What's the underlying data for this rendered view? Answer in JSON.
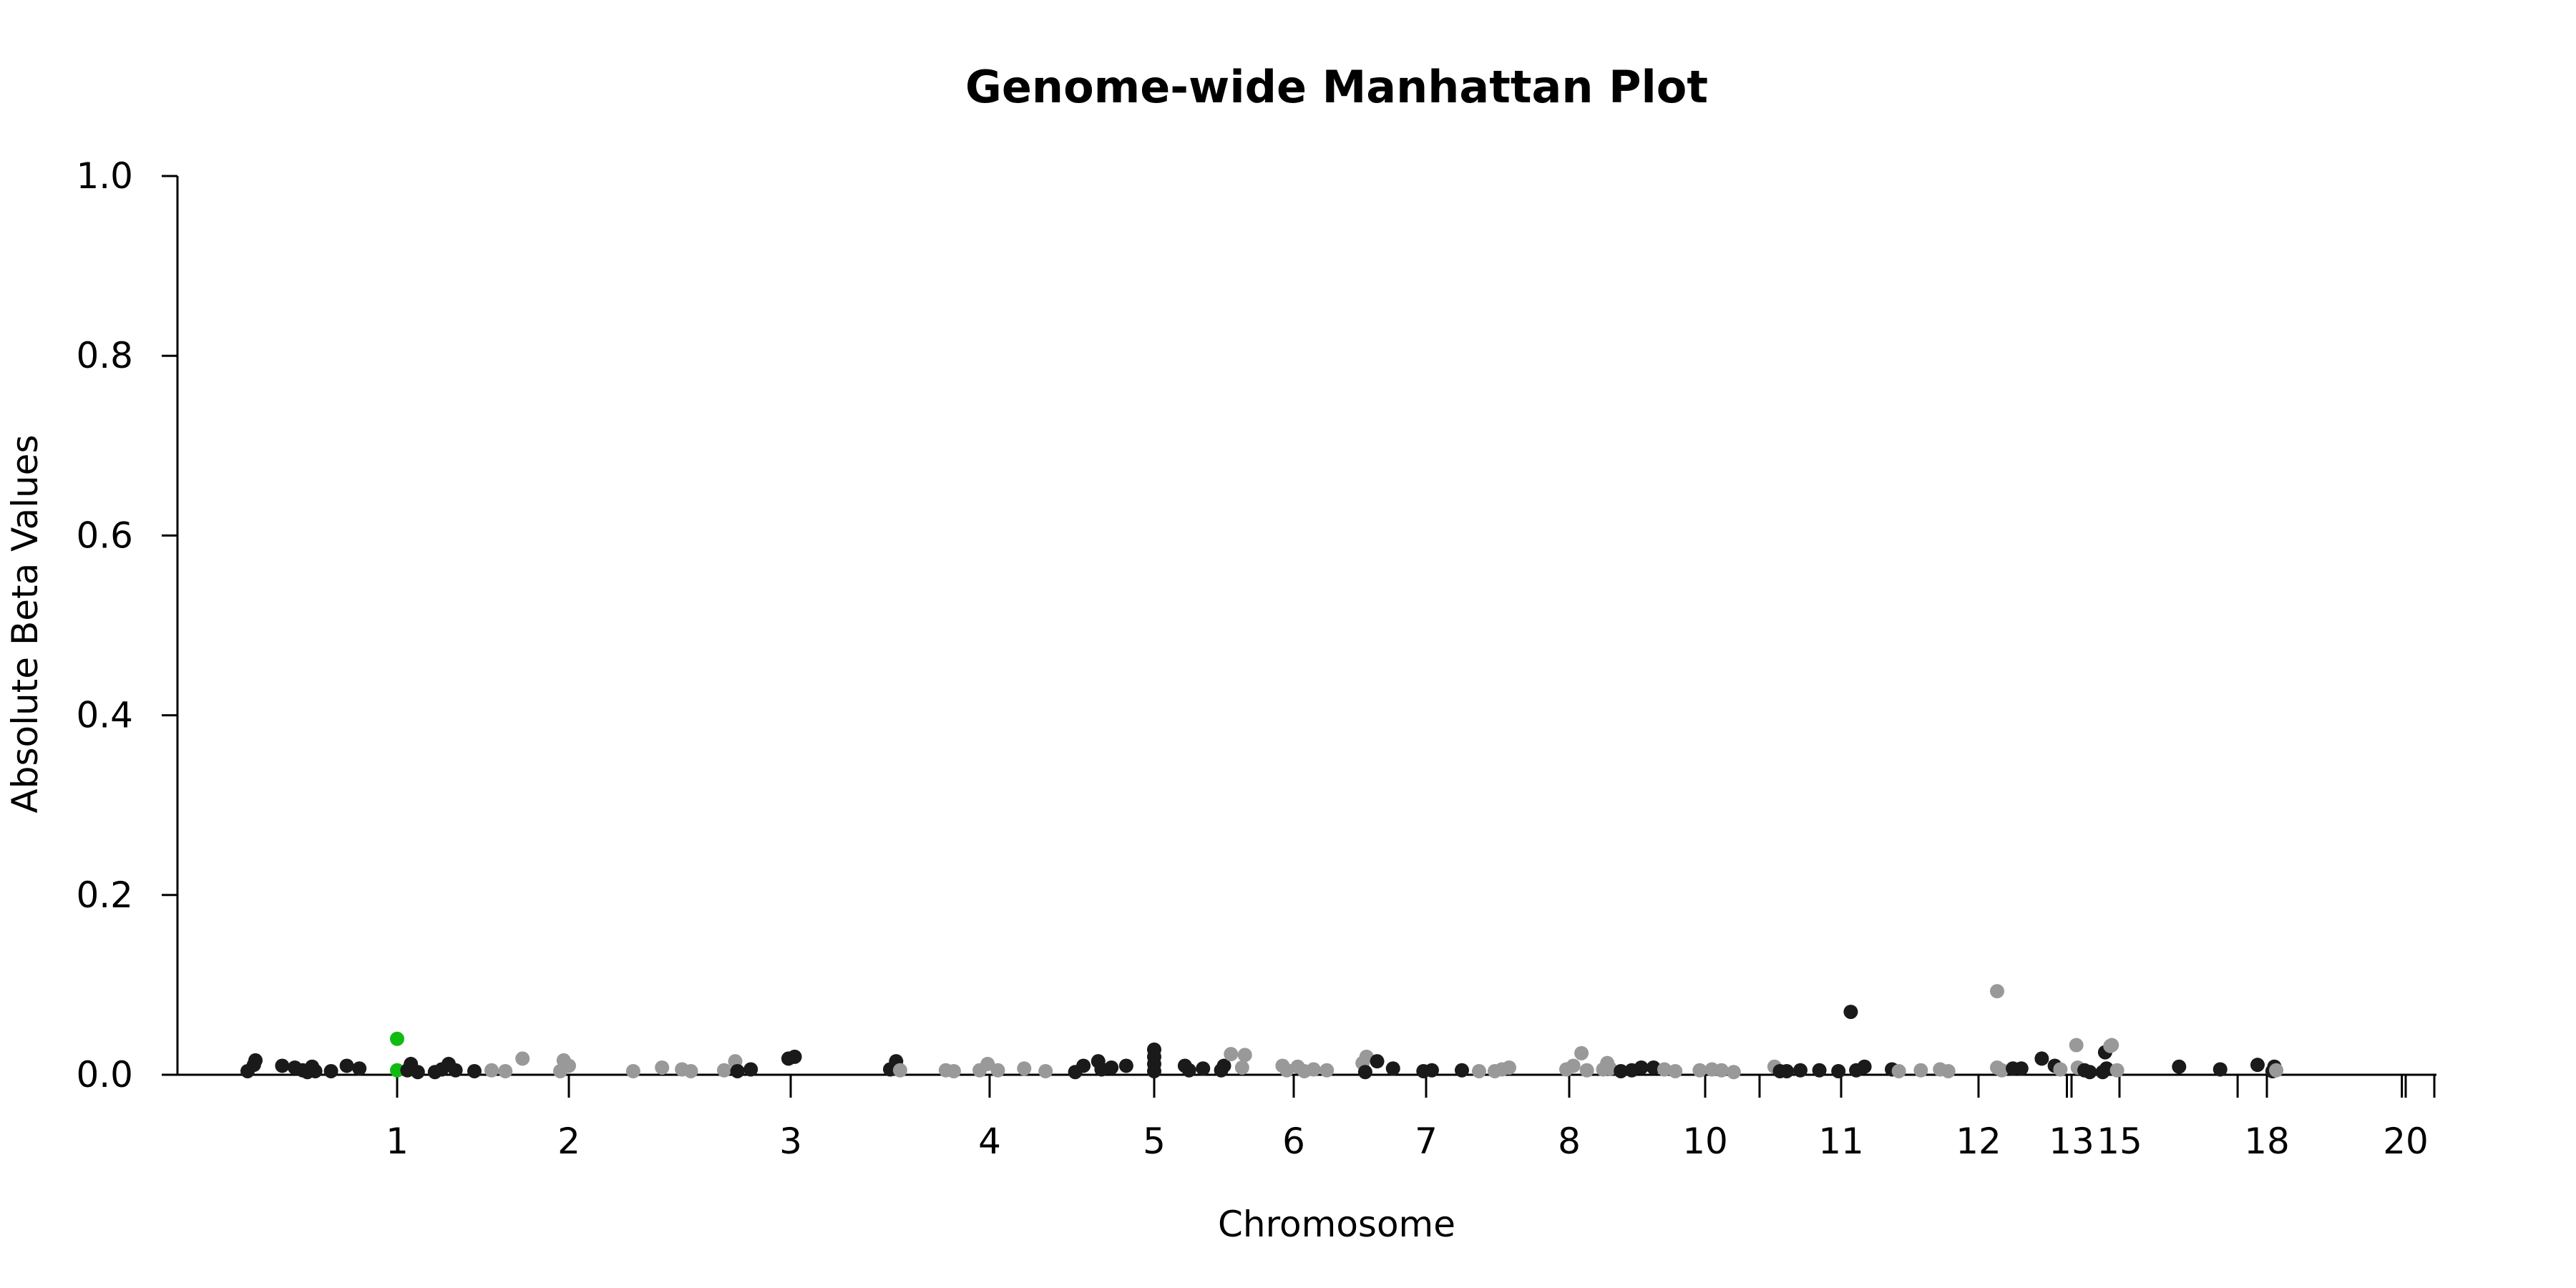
{
  "chart_data": {
    "type": "scatter",
    "title": "Genome-wide Manhattan Plot",
    "xlabel": "Chromosome",
    "ylabel": "Absolute Beta Values",
    "ylim": [
      0,
      1.0
    ],
    "y_ticks": [
      "0.0",
      "0.2",
      "0.4",
      "0.6",
      "0.8",
      "1.0"
    ],
    "x_labeled_ticks": [
      "1",
      "2",
      "3",
      "4",
      "5",
      "6",
      "7",
      "8",
      "10",
      "11",
      "12",
      "13",
      "15",
      "18",
      "20"
    ],
    "grid": false,
    "legend": "none",
    "colors": {
      "black": "#1a1a1a",
      "gray": "#999999",
      "highlight": "#11bb11"
    },
    "points": [
      {
        "x": 0.05,
        "y": 0.004,
        "c": "black"
      },
      {
        "x": 0.09,
        "y": 0.011,
        "c": "black"
      },
      {
        "x": 0.1,
        "y": 0.016,
        "c": "black"
      },
      {
        "x": 0.27,
        "y": 0.01,
        "c": "black"
      },
      {
        "x": 0.35,
        "y": 0.008,
        "c": "black"
      },
      {
        "x": 0.4,
        "y": 0.005,
        "c": "black"
      },
      {
        "x": 0.43,
        "y": 0.003,
        "c": "black"
      },
      {
        "x": 0.46,
        "y": 0.009,
        "c": "black"
      },
      {
        "x": 0.48,
        "y": 0.004,
        "c": "black"
      },
      {
        "x": 0.58,
        "y": 0.004,
        "c": "black"
      },
      {
        "x": 0.68,
        "y": 0.01,
        "c": "black"
      },
      {
        "x": 0.76,
        "y": 0.007,
        "c": "black"
      },
      {
        "x": 1.0,
        "y": 0.04,
        "c": "highlight"
      },
      {
        "x": 1.0,
        "y": 0.005,
        "c": "highlight"
      },
      {
        "x": 1.06,
        "y": 0.005,
        "c": "black"
      },
      {
        "x": 1.08,
        "y": 0.012,
        "c": "black"
      },
      {
        "x": 1.12,
        "y": 0.003,
        "c": "black"
      },
      {
        "x": 1.22,
        "y": 0.003,
        "c": "black"
      },
      {
        "x": 1.26,
        "y": 0.006,
        "c": "black"
      },
      {
        "x": 1.3,
        "y": 0.012,
        "c": "black"
      },
      {
        "x": 1.34,
        "y": 0.005,
        "c": "black"
      },
      {
        "x": 1.45,
        "y": 0.004,
        "c": "black"
      },
      {
        "x": 1.55,
        "y": 0.005,
        "c": "gray"
      },
      {
        "x": 1.63,
        "y": 0.004,
        "c": "gray"
      },
      {
        "x": 1.73,
        "y": 0.018,
        "c": "gray"
      },
      {
        "x": 1.95,
        "y": 0.004,
        "c": "gray"
      },
      {
        "x": 1.97,
        "y": 0.016,
        "c": "gray"
      },
      {
        "x": 2.0,
        "y": 0.01,
        "c": "gray"
      },
      {
        "x": 2.29,
        "y": 0.004,
        "c": "gray"
      },
      {
        "x": 2.42,
        "y": 0.008,
        "c": "gray"
      },
      {
        "x": 2.51,
        "y": 0.006,
        "c": "gray"
      },
      {
        "x": 2.55,
        "y": 0.004,
        "c": "gray"
      },
      {
        "x": 2.7,
        "y": 0.005,
        "c": "gray"
      },
      {
        "x": 2.75,
        "y": 0.015,
        "c": "gray"
      },
      {
        "x": 2.76,
        "y": 0.004,
        "c": "black"
      },
      {
        "x": 2.82,
        "y": 0.006,
        "c": "black"
      },
      {
        "x": 2.99,
        "y": 0.018,
        "c": "black"
      },
      {
        "x": 3.02,
        "y": 0.02,
        "c": "black"
      },
      {
        "x": 3.5,
        "y": 0.006,
        "c": "black"
      },
      {
        "x": 3.53,
        "y": 0.015,
        "c": "black"
      },
      {
        "x": 3.55,
        "y": 0.005,
        "c": "gray"
      },
      {
        "x": 3.78,
        "y": 0.005,
        "c": "gray"
      },
      {
        "x": 3.82,
        "y": 0.004,
        "c": "gray"
      },
      {
        "x": 3.95,
        "y": 0.005,
        "c": "gray"
      },
      {
        "x": 3.99,
        "y": 0.012,
        "c": "gray"
      },
      {
        "x": 4.05,
        "y": 0.005,
        "c": "gray"
      },
      {
        "x": 4.21,
        "y": 0.007,
        "c": "gray"
      },
      {
        "x": 4.34,
        "y": 0.004,
        "c": "gray"
      },
      {
        "x": 4.52,
        "y": 0.003,
        "c": "black"
      },
      {
        "x": 4.57,
        "y": 0.01,
        "c": "black"
      },
      {
        "x": 4.66,
        "y": 0.015,
        "c": "black"
      },
      {
        "x": 4.68,
        "y": 0.006,
        "c": "black"
      },
      {
        "x": 4.74,
        "y": 0.008,
        "c": "black"
      },
      {
        "x": 4.83,
        "y": 0.01,
        "c": "black"
      },
      {
        "x": 5.0,
        "y": 0.004,
        "c": "black"
      },
      {
        "x": 5.0,
        "y": 0.012,
        "c": "black"
      },
      {
        "x": 5.0,
        "y": 0.02,
        "c": "black"
      },
      {
        "x": 5.0,
        "y": 0.028,
        "c": "black"
      },
      {
        "x": 5.22,
        "y": 0.01,
        "c": "black"
      },
      {
        "x": 5.25,
        "y": 0.005,
        "c": "black"
      },
      {
        "x": 5.35,
        "y": 0.007,
        "c": "black"
      },
      {
        "x": 5.48,
        "y": 0.005,
        "c": "black"
      },
      {
        "x": 5.5,
        "y": 0.01,
        "c": "black"
      },
      {
        "x": 5.55,
        "y": 0.023,
        "c": "gray"
      },
      {
        "x": 5.63,
        "y": 0.008,
        "c": "gray"
      },
      {
        "x": 5.65,
        "y": 0.022,
        "c": "gray"
      },
      {
        "x": 5.92,
        "y": 0.01,
        "c": "gray"
      },
      {
        "x": 5.95,
        "y": 0.005,
        "c": "gray"
      },
      {
        "x": 6.03,
        "y": 0.009,
        "c": "gray"
      },
      {
        "x": 6.08,
        "y": 0.004,
        "c": "gray"
      },
      {
        "x": 6.15,
        "y": 0.006,
        "c": "gray"
      },
      {
        "x": 6.25,
        "y": 0.005,
        "c": "gray"
      },
      {
        "x": 6.52,
        "y": 0.013,
        "c": "gray"
      },
      {
        "x": 6.55,
        "y": 0.02,
        "c": "gray"
      },
      {
        "x": 6.54,
        "y": 0.003,
        "c": "black"
      },
      {
        "x": 6.63,
        "y": 0.015,
        "c": "black"
      },
      {
        "x": 6.75,
        "y": 0.007,
        "c": "black"
      },
      {
        "x": 6.98,
        "y": 0.004,
        "c": "black"
      },
      {
        "x": 7.04,
        "y": 0.005,
        "c": "black"
      },
      {
        "x": 7.25,
        "y": 0.005,
        "c": "black"
      },
      {
        "x": 7.37,
        "y": 0.004,
        "c": "gray"
      },
      {
        "x": 7.48,
        "y": 0.004,
        "c": "gray"
      },
      {
        "x": 7.53,
        "y": 0.006,
        "c": "gray"
      },
      {
        "x": 7.58,
        "y": 0.008,
        "c": "gray"
      },
      {
        "x": 7.98,
        "y": 0.006,
        "c": "gray"
      },
      {
        "x": 8.03,
        "y": 0.01,
        "c": "gray"
      },
      {
        "x": 8.09,
        "y": 0.024,
        "c": "gray"
      },
      {
        "x": 8.13,
        "y": 0.005,
        "c": "gray"
      },
      {
        "x": 8.25,
        "y": 0.006,
        "c": "gray"
      },
      {
        "x": 8.28,
        "y": 0.013,
        "c": "gray"
      },
      {
        "x": 8.3,
        "y": 0.007,
        "c": "gray"
      },
      {
        "x": 8.38,
        "y": 0.004,
        "c": "black"
      },
      {
        "x": 8.46,
        "y": 0.005,
        "c": "black"
      },
      {
        "x": 8.53,
        "y": 0.008,
        "c": "black"
      },
      {
        "x": 8.62,
        "y": 0.008,
        "c": "black"
      },
      {
        "x": 8.7,
        "y": 0.006,
        "c": "gray"
      },
      {
        "x": 8.78,
        "y": 0.004,
        "c": "gray"
      },
      {
        "x": 8.96,
        "y": 0.005,
        "c": "gray"
      },
      {
        "x": 9.05,
        "y": 0.006,
        "c": "gray"
      },
      {
        "x": 9.12,
        "y": 0.005,
        "c": "gray"
      },
      {
        "x": 9.21,
        "y": 0.003,
        "c": "gray"
      },
      {
        "x": 9.51,
        "y": 0.009,
        "c": "gray"
      },
      {
        "x": 9.55,
        "y": 0.004,
        "c": "black"
      },
      {
        "x": 9.6,
        "y": 0.004,
        "c": "black"
      },
      {
        "x": 9.7,
        "y": 0.005,
        "c": "black"
      },
      {
        "x": 9.84,
        "y": 0.005,
        "c": "black"
      },
      {
        "x": 9.98,
        "y": 0.004,
        "c": "black"
      },
      {
        "x": 10.07,
        "y": 0.07,
        "c": "black"
      },
      {
        "x": 10.11,
        "y": 0.005,
        "c": "black"
      },
      {
        "x": 10.17,
        "y": 0.009,
        "c": "black"
      },
      {
        "x": 10.37,
        "y": 0.006,
        "c": "black"
      },
      {
        "x": 10.42,
        "y": 0.004,
        "c": "gray"
      },
      {
        "x": 10.58,
        "y": 0.005,
        "c": "gray"
      },
      {
        "x": 10.72,
        "y": 0.006,
        "c": "gray"
      },
      {
        "x": 10.78,
        "y": 0.004,
        "c": "gray"
      },
      {
        "x": 11.2,
        "y": 0.093,
        "c": "gray"
      },
      {
        "x": 11.2,
        "y": 0.008,
        "c": "gray"
      },
      {
        "x": 11.25,
        "y": 0.005,
        "c": "gray"
      },
      {
        "x": 11.37,
        "y": 0.007,
        "c": "black"
      },
      {
        "x": 11.46,
        "y": 0.007,
        "c": "black"
      },
      {
        "x": 11.68,
        "y": 0.018,
        "c": "black"
      },
      {
        "x": 11.82,
        "y": 0.01,
        "c": "black"
      },
      {
        "x": 11.88,
        "y": 0.006,
        "c": "gray"
      },
      {
        "x": 12.1,
        "y": 0.033,
        "c": "gray"
      },
      {
        "x": 12.13,
        "y": 0.008,
        "c": "gray"
      },
      {
        "x": 12.27,
        "y": 0.005,
        "c": "black"
      },
      {
        "x": 12.38,
        "y": 0.003,
        "c": "black"
      },
      {
        "x": 12.65,
        "y": 0.003,
        "c": "black"
      },
      {
        "x": 12.7,
        "y": 0.025,
        "c": "black"
      },
      {
        "x": 12.73,
        "y": 0.007,
        "c": "black"
      },
      {
        "x": 12.81,
        "y": 0.032,
        "c": "gray"
      },
      {
        "x": 12.84,
        "y": 0.033,
        "c": "gray"
      },
      {
        "x": 12.95,
        "y": 0.005,
        "c": "gray"
      },
      {
        "x": 13.7,
        "y": 0.009,
        "c": "black"
      },
      {
        "x": 14.25,
        "y": 0.006,
        "c": "black"
      },
      {
        "x": 14.85,
        "y": 0.011,
        "c": "black"
      },
      {
        "x": 15.09,
        "y": 0.004,
        "c": "black"
      },
      {
        "x": 15.12,
        "y": 0.009,
        "c": "black"
      },
      {
        "x": 15.15,
        "y": 0.005,
        "c": "gray"
      }
    ]
  }
}
